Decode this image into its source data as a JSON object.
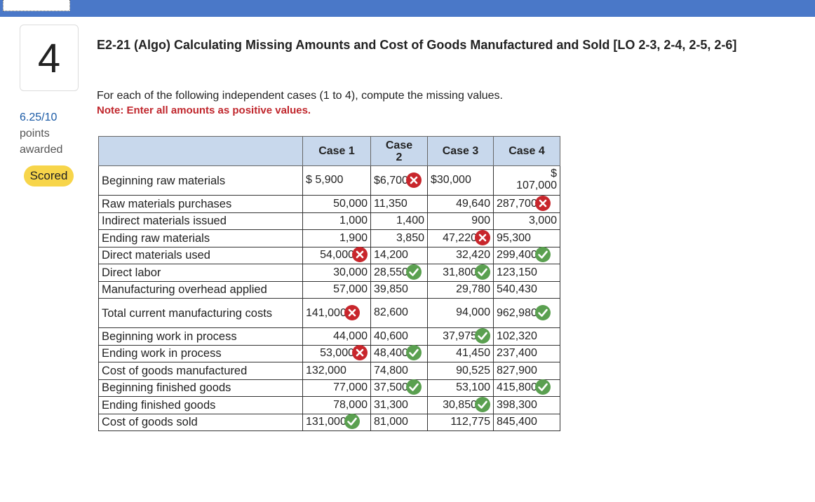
{
  "question_number": "4",
  "points": {
    "value": "6.25/10",
    "line2": "points",
    "line3": "awarded"
  },
  "status_badge": "Scored",
  "title": "E2-21 (Algo) Calculating Missing Amounts and Cost of Goods Manufactured and Sold [LO 2-3, 2-4, 2-5, 2-6]",
  "instruction": "For each of the following independent cases (1 to 4), compute the missing values.",
  "note": "Note: Enter all amounts as positive values.",
  "table": {
    "headers": [
      "",
      "Case 1",
      "Case 2",
      "Case 3",
      "Case 4"
    ],
    "rows": [
      {
        "label": "Beginning raw materials",
        "c1": "$ 5,900",
        "c2": "$6,700",
        "c3": "$30,000",
        "c4_top": "$",
        "c4": "107,000"
      },
      {
        "label": "Raw materials purchases",
        "c1": "50,000",
        "c2": "11,350",
        "c3": "49,640",
        "c4": "287,700"
      },
      {
        "label": "Indirect materials issued",
        "c1": "1,000",
        "c2": "1,400",
        "c3": "900",
        "c4": "3,000"
      },
      {
        "label": "Ending raw materials",
        "c1": "1,900",
        "c2": "3,850",
        "c3": "47,220",
        "c4": "95,300"
      },
      {
        "label": "Direct materials used",
        "c1": "54,000",
        "c2": "14,200",
        "c3": "32,420",
        "c4": "299,400"
      },
      {
        "label": "Direct labor",
        "c1": "30,000",
        "c2": "28,550",
        "c3": "31,800",
        "c4": "123,150"
      },
      {
        "label": "Manufacturing overhead applied",
        "c1": "57,000",
        "c2": "39,850",
        "c3": "29,780",
        "c4": "540,430"
      },
      {
        "label": "Total current manufacturing costs",
        "c1": "141,000",
        "c2": "82,600",
        "c3": "94,000",
        "c4": "962,980"
      },
      {
        "label": "Beginning work in process",
        "c1": "44,000",
        "c2": "40,600",
        "c3": "37,975",
        "c4": "102,320"
      },
      {
        "label": "Ending work in process",
        "c1": "53,000",
        "c2": "48,400",
        "c3": "41,450",
        "c4": "237,400"
      },
      {
        "label": "Cost of goods manufactured",
        "c1": "132,000",
        "c2": "74,800",
        "c3": "90,525",
        "c4": "827,900"
      },
      {
        "label": "Beginning finished goods",
        "c1": "77,000",
        "c2": "37,500",
        "c3": "53,100",
        "c4": "415,800"
      },
      {
        "label": "Ending finished goods",
        "c1": "78,000",
        "c2": "31,300",
        "c3": "30,850",
        "c4": "398,300"
      },
      {
        "label": "Cost of goods sold",
        "c1": "131,000",
        "c2": "81,000",
        "c3": "112,775",
        "c4": "845,400"
      }
    ]
  },
  "colors": {
    "correct": "#5aa050",
    "incorrect": "#c8262c",
    "header_bg": "#c8d8ec",
    "topbar": "#4a78c8",
    "badge": "#f7d54a"
  },
  "icons": {
    "correct": "check-circle-icon",
    "incorrect": "x-circle-icon"
  }
}
